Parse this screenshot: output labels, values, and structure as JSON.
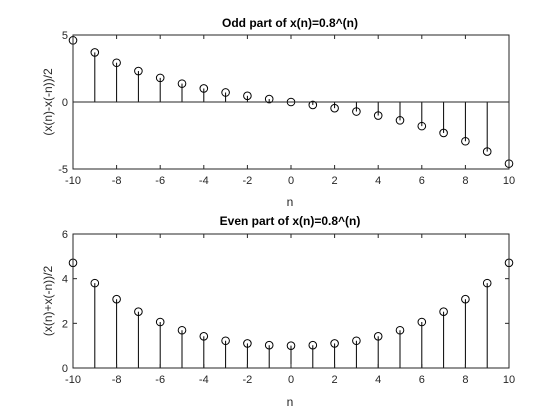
{
  "chart_data": [
    {
      "type": "stem",
      "title": "Odd part of x(n)=0.8^(n)",
      "xlabel": "n",
      "ylabel": "(x(n)-x(-n))/2",
      "xlim": [
        -10,
        10
      ],
      "ylim": [
        -5,
        5
      ],
      "xticks": [
        -10,
        -8,
        -6,
        -4,
        -2,
        0,
        2,
        4,
        6,
        8,
        10
      ],
      "yticks": [
        -5,
        0,
        5
      ],
      "grid": false,
      "marker": "open-circle",
      "x": [
        -10,
        -9,
        -8,
        -7,
        -6,
        -5,
        -4,
        -3,
        -2,
        -1,
        0,
        1,
        2,
        3,
        4,
        5,
        6,
        7,
        8,
        9,
        10
      ],
      "values": [
        4.6,
        3.7,
        2.93,
        2.31,
        1.8,
        1.37,
        1.01,
        0.71,
        0.46,
        0.22,
        0.0,
        -0.22,
        -0.46,
        -0.71,
        -1.01,
        -1.37,
        -1.8,
        -2.31,
        -2.93,
        -3.7,
        -4.6
      ]
    },
    {
      "type": "stem",
      "title": "Even part of x(n)=0.8^(n)",
      "xlabel": "n",
      "ylabel": "(x(n)+x(-n))/2",
      "xlim": [
        -10,
        10
      ],
      "ylim": [
        0,
        6
      ],
      "xticks": [
        -10,
        -8,
        -6,
        -4,
        -2,
        0,
        2,
        4,
        6,
        8,
        10
      ],
      "yticks": [
        0,
        2,
        4,
        6
      ],
      "grid": false,
      "marker": "open-circle",
      "x": [
        -10,
        -9,
        -8,
        -7,
        -6,
        -5,
        -4,
        -3,
        -2,
        -1,
        0,
        1,
        2,
        3,
        4,
        5,
        6,
        7,
        8,
        9,
        10
      ],
      "values": [
        4.71,
        3.8,
        3.08,
        2.52,
        2.06,
        1.69,
        1.42,
        1.22,
        1.1,
        1.02,
        1.0,
        1.02,
        1.1,
        1.22,
        1.42,
        1.69,
        2.06,
        2.52,
        3.08,
        3.8,
        4.71
      ]
    }
  ]
}
